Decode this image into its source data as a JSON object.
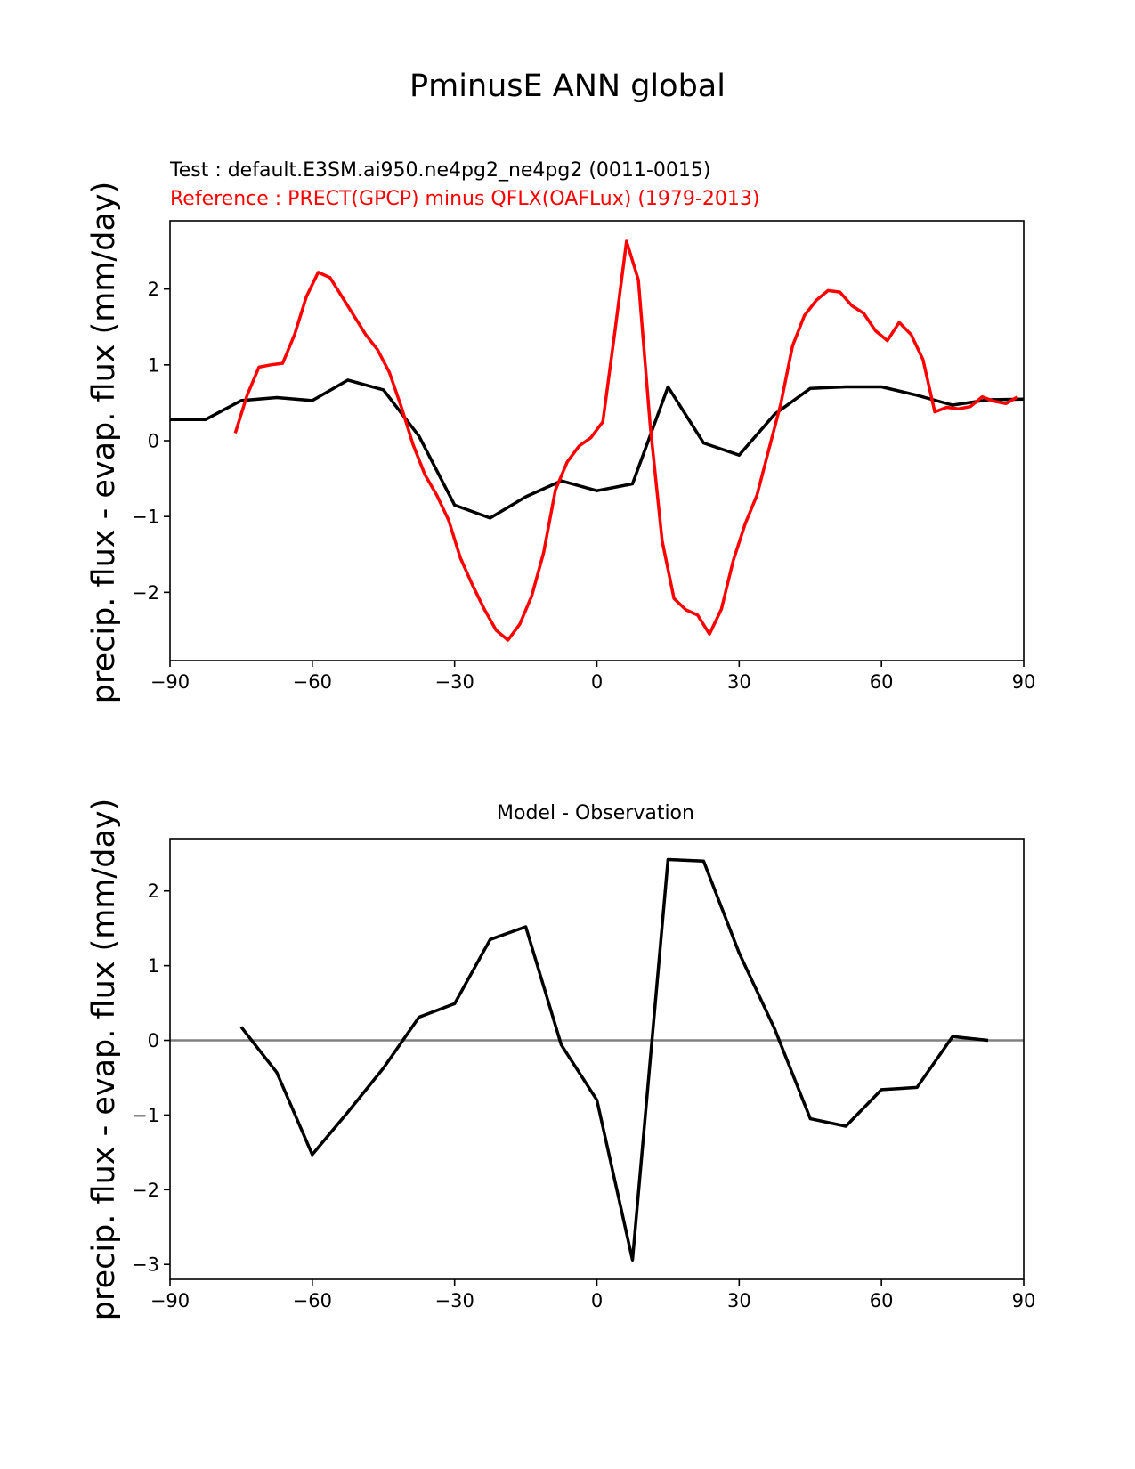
{
  "figure": {
    "title": "PminusE ANN global",
    "ylabel_top": "precip. flux - evap. flux (mm/day)",
    "ylabel_bottom": "precip. flux - evap. flux (mm/day)"
  },
  "chart_data": [
    {
      "type": "line",
      "test_label": "Test : default.E3SM.ai950.ne4pg2_ne4pg2 (0011-0015)",
      "reference_label": "Reference : PRECT(GPCP) minus QFLX(OAFLux) (1979-2013)",
      "xlim": [
        -90,
        90
      ],
      "ylim": [
        -2.9,
        2.9
      ],
      "xticks": [
        -90,
        -60,
        -30,
        0,
        30,
        60,
        90
      ],
      "xtick_labels": [
        "−90",
        "−60",
        "−30",
        "0",
        "30",
        "60",
        "90"
      ],
      "yticks": [
        -2,
        -1,
        0,
        1,
        2
      ],
      "ytick_labels": [
        "−2",
        "−1",
        "0",
        "1",
        "2"
      ],
      "series": [
        {
          "name": "Test",
          "color": "#000000",
          "x": [
            -90,
            -82.5,
            -75,
            -67.5,
            -60,
            -52.5,
            -45,
            -37.5,
            -30,
            -22.5,
            -15,
            -7.5,
            0,
            7.5,
            15,
            22.5,
            30,
            37.5,
            45,
            52.5,
            60,
            67.5,
            75,
            82.5,
            90
          ],
          "y": [
            0.28,
            0.28,
            0.53,
            0.57,
            0.53,
            0.8,
            0.67,
            0.06,
            -0.85,
            -1.02,
            -0.74,
            -0.53,
            -0.66,
            -0.57,
            0.71,
            -0.03,
            -0.19,
            0.35,
            0.69,
            0.71,
            0.71,
            0.6,
            0.47,
            0.54,
            0.55
          ]
        },
        {
          "name": "Reference",
          "color": "#ff0000",
          "x": [
            -76.25,
            -73.75,
            -71.25,
            -68.75,
            -66.25,
            -63.75,
            -61.25,
            -58.75,
            -56.25,
            -53.75,
            -51.25,
            -48.75,
            -46.25,
            -43.75,
            -41.25,
            -38.75,
            -36.25,
            -33.75,
            -31.25,
            -28.75,
            -26.25,
            -23.75,
            -21.25,
            -18.75,
            -16.25,
            -13.75,
            -11.25,
            -8.75,
            -6.25,
            -3.75,
            -1.25,
            1.25,
            3.75,
            6.25,
            8.75,
            11.25,
            13.75,
            16.25,
            18.75,
            21.25,
            23.75,
            26.25,
            28.75,
            31.25,
            33.75,
            36.25,
            38.75,
            41.25,
            43.75,
            46.25,
            48.75,
            51.25,
            53.75,
            56.25,
            58.75,
            61.25,
            63.75,
            66.25,
            68.75,
            71.25,
            73.75,
            76.25,
            78.75,
            81.25,
            83.75,
            86.25,
            88.75
          ],
          "y": [
            0.1,
            0.6,
            0.97,
            1.0,
            1.02,
            1.4,
            1.9,
            2.22,
            2.15,
            1.9,
            1.65,
            1.4,
            1.2,
            0.9,
            0.45,
            -0.05,
            -0.45,
            -0.72,
            -1.05,
            -1.55,
            -1.9,
            -2.22,
            -2.5,
            -2.63,
            -2.42,
            -2.05,
            -1.48,
            -0.65,
            -0.28,
            -0.07,
            0.04,
            0.25,
            1.42,
            2.63,
            2.12,
            0.2,
            -1.32,
            -2.08,
            -2.23,
            -2.3,
            -2.55,
            -2.22,
            -1.58,
            -1.1,
            -0.72,
            -0.12,
            0.48,
            1.25,
            1.65,
            1.85,
            1.98,
            1.96,
            1.78,
            1.68,
            1.45,
            1.32,
            1.56,
            1.4,
            1.07,
            0.38,
            0.44,
            0.42,
            0.45,
            0.58,
            0.52,
            0.49,
            0.58
          ]
        }
      ]
    },
    {
      "type": "line",
      "title": "Model - Observation",
      "xlim": [
        -90,
        90
      ],
      "ylim": [
        -3.2,
        2.7
      ],
      "xticks": [
        -90,
        -60,
        -30,
        0,
        30,
        60,
        90
      ],
      "xtick_labels": [
        "−90",
        "−60",
        "−30",
        "0",
        "30",
        "60",
        "90"
      ],
      "yticks": [
        -3,
        -2,
        -1,
        0,
        1,
        2
      ],
      "ytick_labels": [
        "−3",
        "−2",
        "−1",
        "0",
        "1",
        "2"
      ],
      "zero_line": {
        "y": 0,
        "color": "#808080"
      },
      "series": [
        {
          "name": "Model - Observation",
          "color": "#000000",
          "x": [
            -75,
            -67.5,
            -60,
            -52.5,
            -45,
            -37.5,
            -30,
            -22.5,
            -15,
            -7.5,
            0,
            7.5,
            15,
            22.5,
            30,
            37.5,
            45,
            52.5,
            60,
            67.5,
            75,
            82.5
          ],
          "y": [
            0.18,
            -0.43,
            -1.53,
            -0.96,
            -0.37,
            0.31,
            0.49,
            1.35,
            1.52,
            -0.06,
            -0.8,
            -2.94,
            2.42,
            2.4,
            1.17,
            0.15,
            -1.05,
            -1.15,
            -0.66,
            -0.63,
            0.05,
            0.0
          ]
        }
      ]
    }
  ]
}
